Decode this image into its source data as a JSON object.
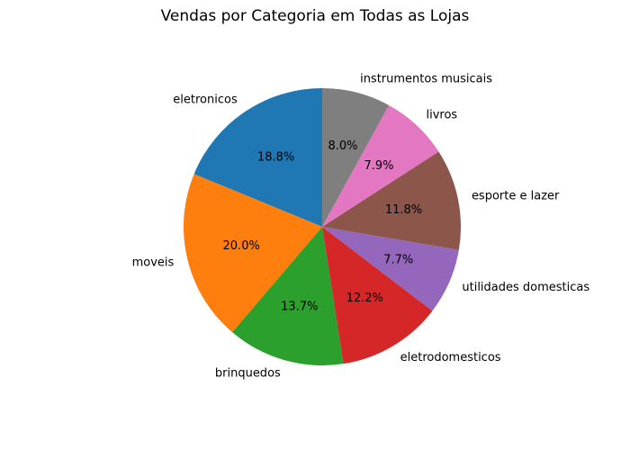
{
  "chart_data": {
    "type": "pie",
    "title": "Vendas por Categoria em Todas as Lojas",
    "start_angle_deg": 90,
    "direction": "counterclockwise",
    "legend": "none",
    "slices": [
      {
        "label": "eletronicos",
        "value": 18.8,
        "pct_label": "18.8%",
        "color": "#1f77b4"
      },
      {
        "label": "moveis",
        "value": 20.0,
        "pct_label": "20.0%",
        "color": "#ff7f0e"
      },
      {
        "label": "brinquedos",
        "value": 13.7,
        "pct_label": "13.7%",
        "color": "#2ca02c"
      },
      {
        "label": "eletrodomesticos",
        "value": 12.2,
        "pct_label": "12.2%",
        "color": "#d62728"
      },
      {
        "label": "utilidades domesticas",
        "value": 7.7,
        "pct_label": "7.7%",
        "color": "#9467bd"
      },
      {
        "label": "esporte e lazer",
        "value": 11.8,
        "pct_label": "11.8%",
        "color": "#8c564b"
      },
      {
        "label": "livros",
        "value": 7.9,
        "pct_label": "7.9%",
        "color": "#e377c2"
      },
      {
        "label": "instrumentos musicais",
        "value": 8.0,
        "pct_label": "8.0%",
        "color": "#7f7f7f"
      }
    ]
  }
}
